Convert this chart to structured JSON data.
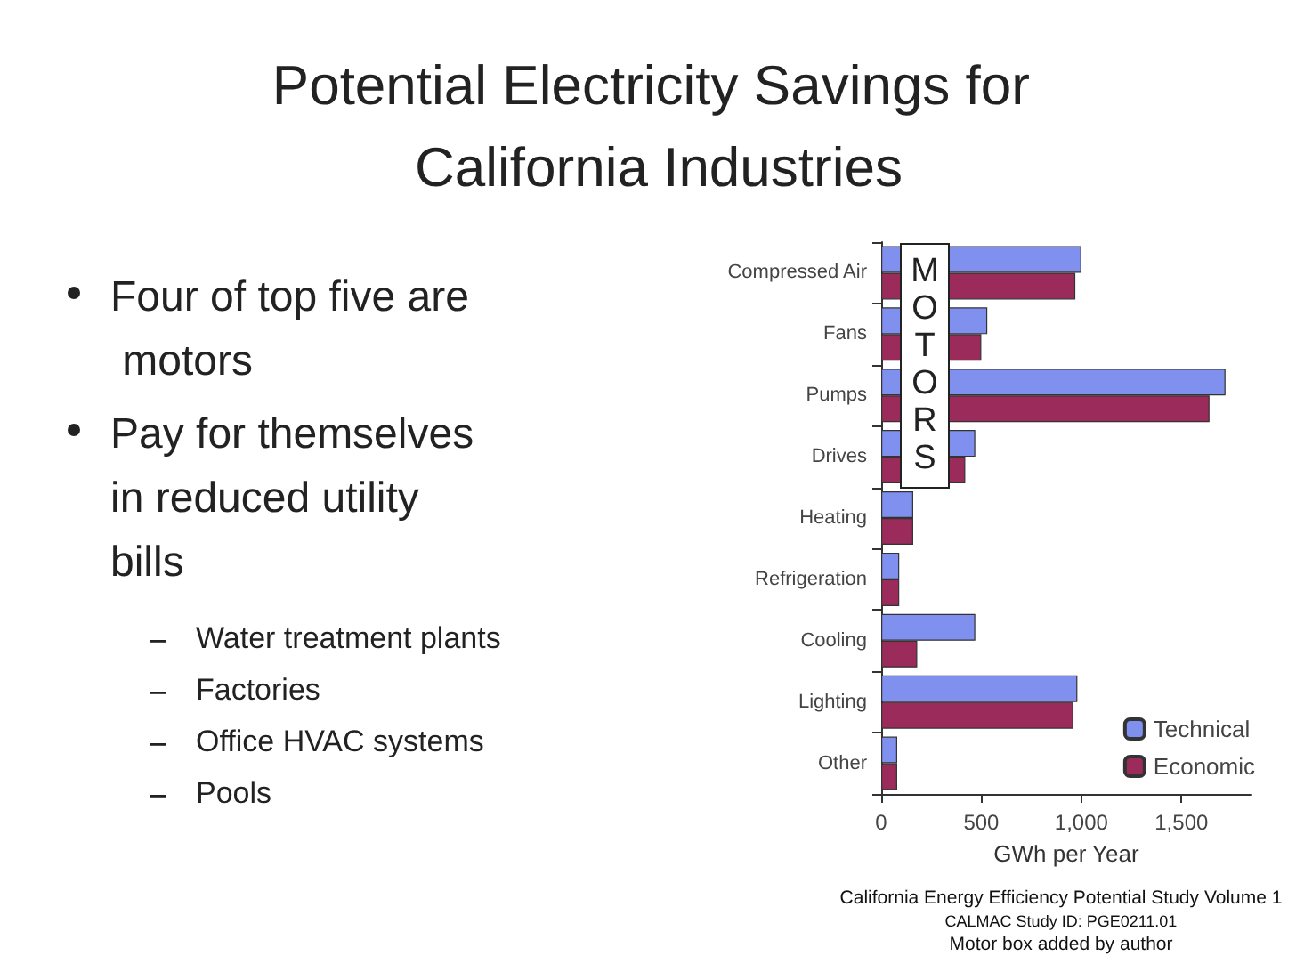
{
  "chart_data": {
    "type": "bar",
    "orientation": "horizontal",
    "title": "Potential Electricity Savings for California Industries",
    "categories": [
      "Compressed Air",
      "Fans",
      "Pumps",
      "Drives",
      "Heating",
      "Refrigeration",
      "Cooling",
      "Lighting",
      "Other"
    ],
    "series": [
      {
        "name": "Technical",
        "color": "#8090ee",
        "values": [
          1000,
          530,
          1720,
          470,
          160,
          90,
          470,
          980,
          80
        ]
      },
      {
        "name": "Economic",
        "color": "#9b2b5a",
        "values": [
          970,
          500,
          1640,
          420,
          160,
          90,
          180,
          960,
          80
        ]
      }
    ],
    "xlabel": "GWh per Year",
    "xlim": [
      0,
      1850
    ],
    "xticks": [
      0,
      500,
      {
        "value": 1000,
        "label": "1,000"
      },
      {
        "value": 1500,
        "label": "1,500"
      }
    ],
    "grid": false,
    "legend": "bottom right",
    "annotations": [
      "Four of top five are motors",
      "Pay for themselves in reduced utility bills",
      "Water treatment plants",
      "Factories",
      "Office HVAC systems",
      "Pools",
      "MOTORS",
      "California Energy Efficiency Potential Study Volume 1",
      "CALMAC Study ID: PGE0211.01",
      "Motor box added by author"
    ]
  }
}
